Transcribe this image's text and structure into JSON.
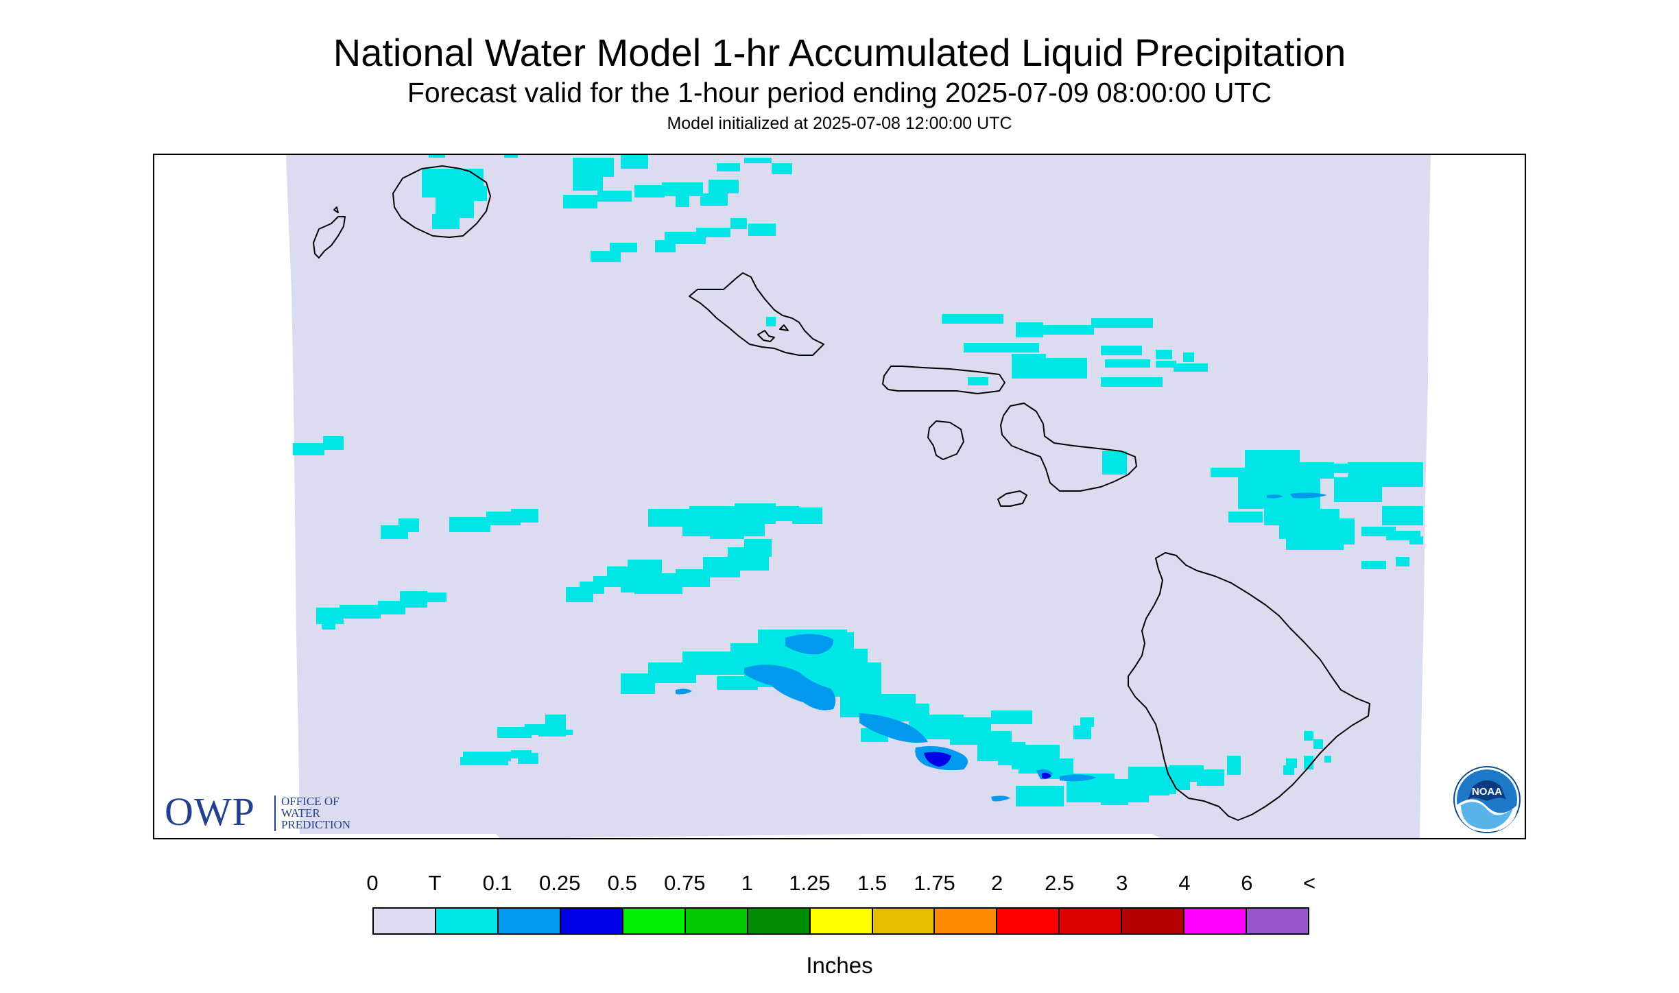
{
  "header": {
    "title": "National Water Model 1-hr Accumulated Liquid Precipitation",
    "subtitle": "Forecast valid for the 1-hour period ending 2025-07-09 08:00:00 UTC",
    "init": "Model initialized at 2025-07-08 12:00:00 UTC"
  },
  "map": {
    "region": "Hawaiian Islands",
    "background_color": "#ffffff",
    "domain_fill_color": "#dcdcf0",
    "coastline_color": "#000000",
    "precip_colors": {
      "trace": "#00e6e6",
      "light": "#0099ee",
      "moderate": "#0000e6"
    }
  },
  "logos": {
    "owp": {
      "abbr": "OWP",
      "line1": "OFFICE OF",
      "line2": "WATER",
      "line3": "PREDICTION",
      "color": "#22418a"
    },
    "noaa": {
      "text": "NOAA",
      "icon": "noaa-logo-icon"
    }
  },
  "legend": {
    "labels": [
      "0",
      "T",
      "0.1",
      "0.25",
      "0.5",
      "0.75",
      "1",
      "1.25",
      "1.5",
      "1.75",
      "2",
      "2.5",
      "3",
      "4",
      "6",
      "<"
    ],
    "colors": [
      "#dcdcf0",
      "#00e6e6",
      "#0099ee",
      "#0000e6",
      "#00f000",
      "#00c800",
      "#008c00",
      "#ffff00",
      "#e6be00",
      "#ff8c00",
      "#ff0000",
      "#dc0000",
      "#b40000",
      "#ff00ff",
      "#9955cc"
    ],
    "units": "Inches"
  }
}
